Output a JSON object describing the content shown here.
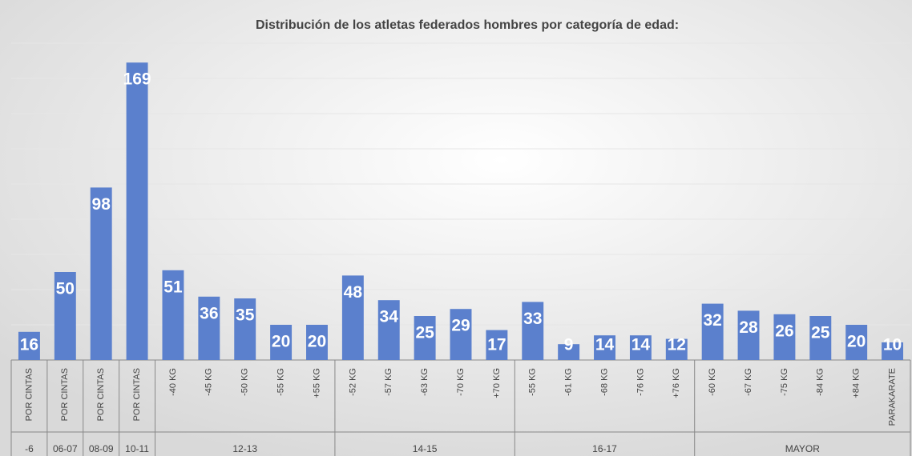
{
  "chart_data": {
    "type": "bar",
    "title": "Distribución de los atletas federados hombres por categoría de edad:",
    "color": "#5b80cd",
    "ylim": [
      0,
      180
    ],
    "yticks": [
      0,
      20,
      40,
      60,
      80,
      100,
      120,
      140,
      160,
      180
    ],
    "grid": true,
    "groups": [
      {
        "name": "-6",
        "categories": [
          "POR CINTAS"
        ],
        "values": [
          16
        ]
      },
      {
        "name": "06-07",
        "categories": [
          "POR CINTAS"
        ],
        "values": [
          50
        ]
      },
      {
        "name": "08-09",
        "categories": [
          "POR CINTAS"
        ],
        "values": [
          98
        ]
      },
      {
        "name": "10-11",
        "categories": [
          "POR CINTAS"
        ],
        "values": [
          169
        ]
      },
      {
        "name": "12-13",
        "categories": [
          "-40 KG",
          "-45 KG",
          "-50 KG",
          "-55 KG",
          "+55 KG"
        ],
        "values": [
          51,
          36,
          35,
          20,
          20
        ]
      },
      {
        "name": "14-15",
        "categories": [
          "-52 KG",
          "-57 KG",
          "-63 KG",
          "-70 KG",
          "+70 KG"
        ],
        "values": [
          48,
          34,
          25,
          29,
          17
        ]
      },
      {
        "name": "16-17",
        "categories": [
          "-55 KG",
          "-61 KG",
          "-68 KG",
          "-76 KG",
          "+76 KG"
        ],
        "values": [
          33,
          9,
          14,
          14,
          12
        ]
      },
      {
        "name": "MAYOR",
        "categories": [
          "-60 KG",
          "-67 KG",
          "-75 KG",
          "-84 KG",
          "+84 KG",
          "PARAKARATE"
        ],
        "values": [
          32,
          28,
          26,
          25,
          20,
          10
        ]
      }
    ]
  }
}
